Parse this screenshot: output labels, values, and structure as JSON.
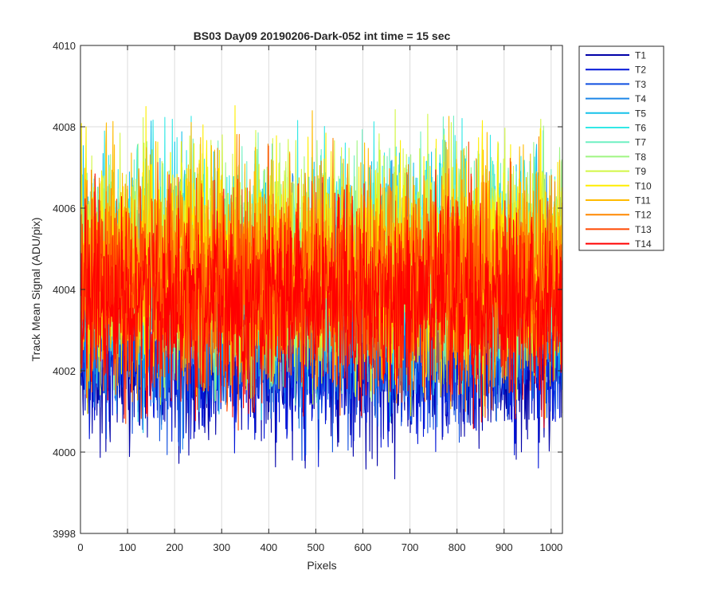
{
  "chart_data": {
    "type": "line",
    "title": "BS03 Day09 20190206-Dark-052 int time = 15 sec",
    "xlabel": "Pixels",
    "ylabel": "Track Mean Signal (ADU/pix)",
    "xlim": [
      0,
      1024
    ],
    "ylim": [
      3998,
      4010
    ],
    "xticks": [
      "0",
      "100",
      "200",
      "300",
      "400",
      "500",
      "600",
      "700",
      "800",
      "900",
      "1000"
    ],
    "yticks": [
      "3998",
      "4000",
      "4002",
      "4004",
      "4006",
      "4008",
      "4010"
    ],
    "grid": true,
    "legend_position": "outside-top-right",
    "x_samples": 1024,
    "series": [
      {
        "name": "T1",
        "color": "#0000a8",
        "mean": 4002.2,
        "noise": 1.0
      },
      {
        "name": "T2",
        "color": "#0015d8",
        "mean": 4002.5,
        "noise": 1.0
      },
      {
        "name": "T3",
        "color": "#0f4fe0",
        "mean": 4002.9,
        "noise": 1.1
      },
      {
        "name": "T4",
        "color": "#1d86e8",
        "mean": 4003.6,
        "noise": 1.2
      },
      {
        "name": "T5",
        "color": "#17c2ea",
        "mean": 4004.5,
        "noise": 1.3
      },
      {
        "name": "T6",
        "color": "#33e8e6",
        "mean": 4004.7,
        "noise": 1.3
      },
      {
        "name": "T7",
        "color": "#6ff0c2",
        "mean": 4004.6,
        "noise": 1.3
      },
      {
        "name": "T8",
        "color": "#9ff582",
        "mean": 4004.6,
        "noise": 1.3
      },
      {
        "name": "T9",
        "color": "#d2f745",
        "mean": 4004.7,
        "noise": 1.3
      },
      {
        "name": "T10",
        "color": "#ffee00",
        "mean": 4004.6,
        "noise": 1.3
      },
      {
        "name": "T11",
        "color": "#ffbb00",
        "mean": 4004.5,
        "noise": 1.3
      },
      {
        "name": "T12",
        "color": "#ff8800",
        "mean": 4004.3,
        "noise": 1.3
      },
      {
        "name": "T13",
        "color": "#ff4800",
        "mean": 4003.9,
        "noise": 1.2
      },
      {
        "name": "T14",
        "color": "#ff0000",
        "mean": 4003.7,
        "noise": 1.2
      }
    ]
  }
}
